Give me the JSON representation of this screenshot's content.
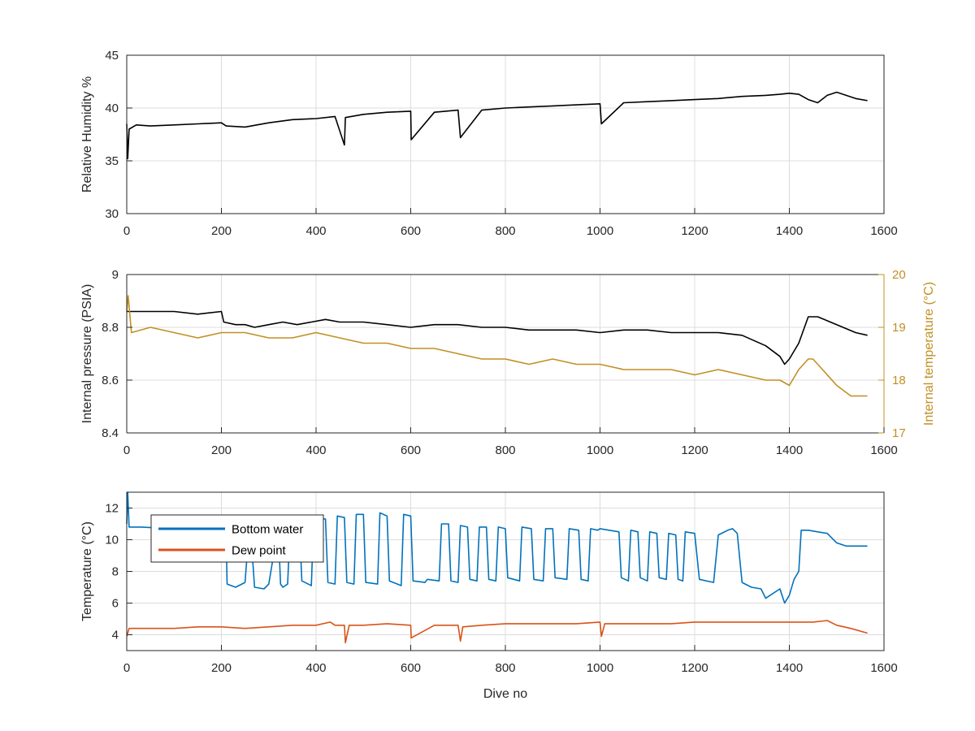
{
  "chart_data": [
    {
      "type": "line",
      "xlabel": "",
      "ylabel": "Relative Humidity %",
      "xlim": [
        0,
        1600
      ],
      "ylim": [
        30,
        45
      ],
      "xticks": [
        "0",
        "200",
        "400",
        "600",
        "800",
        "1000",
        "1200",
        "1400",
        "1600"
      ],
      "yticks": [
        "30",
        "35",
        "40",
        "45"
      ],
      "grid": true,
      "series": [
        {
          "color": "#000000",
          "x": [
            0,
            2,
            5,
            20,
            50,
            100,
            150,
            200,
            210,
            250,
            300,
            350,
            400,
            440,
            460,
            462,
            500,
            550,
            600,
            601,
            650,
            700,
            705,
            750,
            800,
            850,
            900,
            950,
            1000,
            1003,
            1050,
            1100,
            1150,
            1200,
            1250,
            1300,
            1350,
            1380,
            1400,
            1420,
            1440,
            1460,
            1480,
            1500,
            1520,
            1540,
            1565
          ],
          "y": [
            38.5,
            35.2,
            38.0,
            38.4,
            38.3,
            38.4,
            38.5,
            38.6,
            38.3,
            38.2,
            38.6,
            38.9,
            39.0,
            39.2,
            36.5,
            39.1,
            39.4,
            39.6,
            39.7,
            37.0,
            39.6,
            39.8,
            37.2,
            39.8,
            40.0,
            40.1,
            40.2,
            40.3,
            40.4,
            38.5,
            40.5,
            40.6,
            40.7,
            40.8,
            40.9,
            41.1,
            41.2,
            41.3,
            41.4,
            41.3,
            40.8,
            40.5,
            41.2,
            41.5,
            41.2,
            40.9,
            40.7
          ]
        }
      ]
    },
    {
      "type": "line",
      "xlabel": "",
      "ylabel": "Internal pressure (PSIA)",
      "y2label": "Internal temperature (°C)",
      "xlim": [
        0,
        1600
      ],
      "ylim": [
        8.4,
        9.0
      ],
      "y2lim": [
        17,
        20
      ],
      "xticks": [
        "0",
        "200",
        "400",
        "600",
        "800",
        "1000",
        "1200",
        "1400",
        "1600"
      ],
      "yticks": [
        "8.4",
        "8.6",
        "8.8",
        "9"
      ],
      "y2ticks": [
        "17",
        "18",
        "19",
        "20"
      ],
      "grid": true,
      "colors": {
        "left_axis": "#262626",
        "right_axis": "#C09022"
      },
      "series": [
        {
          "axis": "left",
          "color": "#000000",
          "x": [
            0,
            50,
            100,
            150,
            200,
            205,
            230,
            250,
            270,
            300,
            330,
            360,
            390,
            420,
            450,
            500,
            550,
            600,
            650,
            700,
            750,
            800,
            850,
            900,
            950,
            1000,
            1050,
            1100,
            1150,
            1200,
            1250,
            1300,
            1350,
            1380,
            1390,
            1400,
            1420,
            1440,
            1460,
            1500,
            1540,
            1565
          ],
          "y": [
            8.86,
            8.86,
            8.86,
            8.85,
            8.86,
            8.82,
            8.81,
            8.81,
            8.8,
            8.81,
            8.82,
            8.81,
            8.82,
            8.83,
            8.82,
            8.82,
            8.81,
            8.8,
            8.81,
            8.81,
            8.8,
            8.8,
            8.79,
            8.79,
            8.79,
            8.78,
            8.79,
            8.79,
            8.78,
            8.78,
            8.78,
            8.77,
            8.73,
            8.69,
            8.66,
            8.68,
            8.74,
            8.84,
            8.84,
            8.81,
            8.78,
            8.77
          ]
        },
        {
          "axis": "right",
          "color": "#C09022",
          "x": [
            0,
            3,
            10,
            50,
            100,
            150,
            200,
            250,
            300,
            350,
            400,
            450,
            500,
            550,
            600,
            650,
            700,
            750,
            800,
            850,
            900,
            950,
            1000,
            1050,
            1100,
            1150,
            1200,
            1250,
            1300,
            1350,
            1380,
            1400,
            1420,
            1440,
            1450,
            1470,
            1500,
            1530,
            1565
          ],
          "y": [
            19.3,
            19.6,
            18.9,
            19.0,
            18.9,
            18.8,
            18.9,
            18.9,
            18.8,
            18.8,
            18.9,
            18.8,
            18.7,
            18.7,
            18.6,
            18.6,
            18.5,
            18.4,
            18.4,
            18.3,
            18.4,
            18.3,
            18.3,
            18.2,
            18.2,
            18.2,
            18.1,
            18.2,
            18.1,
            18.0,
            18.0,
            17.9,
            18.2,
            18.4,
            18.4,
            18.2,
            17.9,
            17.7,
            17.7
          ]
        }
      ]
    },
    {
      "type": "line",
      "xlabel": "Dive no",
      "ylabel": "Temperature (°C)",
      "xlim": [
        0,
        1600
      ],
      "ylim": [
        3,
        13
      ],
      "xticks": [
        "0",
        "200",
        "400",
        "600",
        "800",
        "1000",
        "1200",
        "1400",
        "1600"
      ],
      "yticks": [
        "4",
        "6",
        "8",
        "10",
        "12"
      ],
      "grid": true,
      "legend_position": "top-left",
      "series": [
        {
          "name": "Bottom water",
          "color": "#0072BD",
          "x": [
            0,
            2,
            5,
            30,
            100,
            150,
            200,
            210,
            212,
            230,
            250,
            260,
            270,
            290,
            300,
            320,
            325,
            330,
            340,
            345,
            365,
            370,
            390,
            395,
            420,
            425,
            440,
            445,
            460,
            465,
            480,
            485,
            500,
            505,
            530,
            535,
            550,
            555,
            580,
            585,
            600,
            605,
            630,
            635,
            660,
            665,
            680,
            685,
            700,
            705,
            720,
            725,
            740,
            745,
            760,
            765,
            780,
            785,
            800,
            805,
            830,
            835,
            855,
            860,
            880,
            885,
            900,
            905,
            930,
            935,
            955,
            960,
            975,
            980,
            995,
            1000,
            1040,
            1045,
            1060,
            1065,
            1080,
            1085,
            1100,
            1105,
            1120,
            1125,
            1140,
            1145,
            1160,
            1165,
            1175,
            1180,
            1200,
            1210,
            1240,
            1250,
            1270,
            1280,
            1290,
            1300,
            1320,
            1340,
            1350,
            1380,
            1390,
            1400,
            1410,
            1420,
            1425,
            1440,
            1460,
            1480,
            1500,
            1520,
            1565
          ],
          "y": [
            11.0,
            13.0,
            10.8,
            10.8,
            10.7,
            10.7,
            10.7,
            10.6,
            7.2,
            7.0,
            7.3,
            11.3,
            7.0,
            6.9,
            7.2,
            10.8,
            7.2,
            7.0,
            7.2,
            10.7,
            10.8,
            7.4,
            7.1,
            11.4,
            11.3,
            7.3,
            7.2,
            11.5,
            11.4,
            7.3,
            7.2,
            11.6,
            11.6,
            7.3,
            7.2,
            11.7,
            11.5,
            7.4,
            7.1,
            11.6,
            11.5,
            7.4,
            7.3,
            7.5,
            7.4,
            11.0,
            11.0,
            7.4,
            7.3,
            10.9,
            10.8,
            7.5,
            7.4,
            10.8,
            10.8,
            7.5,
            7.4,
            10.8,
            10.7,
            7.6,
            7.4,
            10.8,
            10.7,
            7.5,
            7.4,
            10.7,
            10.7,
            7.6,
            7.5,
            10.7,
            10.6,
            7.5,
            7.4,
            10.7,
            10.6,
            10.7,
            10.5,
            7.6,
            7.4,
            10.6,
            10.5,
            7.6,
            7.4,
            10.5,
            10.4,
            7.6,
            7.5,
            10.4,
            10.3,
            7.5,
            7.4,
            10.5,
            10.4,
            7.5,
            7.3,
            10.3,
            10.6,
            10.7,
            10.4,
            7.3,
            7.0,
            6.9,
            6.3,
            6.9,
            6.0,
            6.5,
            7.5,
            8.0,
            10.6,
            10.6,
            10.5,
            10.4,
            9.8,
            9.6,
            9.6
          ]
        },
        {
          "name": "Dew point",
          "color": "#D95319",
          "x": [
            0,
            5,
            50,
            100,
            150,
            200,
            250,
            300,
            350,
            400,
            430,
            440,
            460,
            462,
            470,
            500,
            550,
            600,
            601,
            650,
            700,
            705,
            710,
            750,
            800,
            850,
            900,
            950,
            1000,
            1003,
            1010,
            1050,
            1100,
            1150,
            1200,
            1250,
            1300,
            1350,
            1400,
            1450,
            1480,
            1500,
            1530,
            1565
          ],
          "y": [
            3.9,
            4.4,
            4.4,
            4.4,
            4.5,
            4.5,
            4.4,
            4.5,
            4.6,
            4.6,
            4.8,
            4.6,
            4.6,
            3.5,
            4.6,
            4.6,
            4.7,
            4.6,
            3.8,
            4.6,
            4.6,
            3.6,
            4.5,
            4.6,
            4.7,
            4.7,
            4.7,
            4.7,
            4.8,
            3.9,
            4.7,
            4.7,
            4.7,
            4.7,
            4.8,
            4.8,
            4.8,
            4.8,
            4.8,
            4.8,
            4.9,
            4.6,
            4.4,
            4.1
          ]
        }
      ]
    }
  ]
}
